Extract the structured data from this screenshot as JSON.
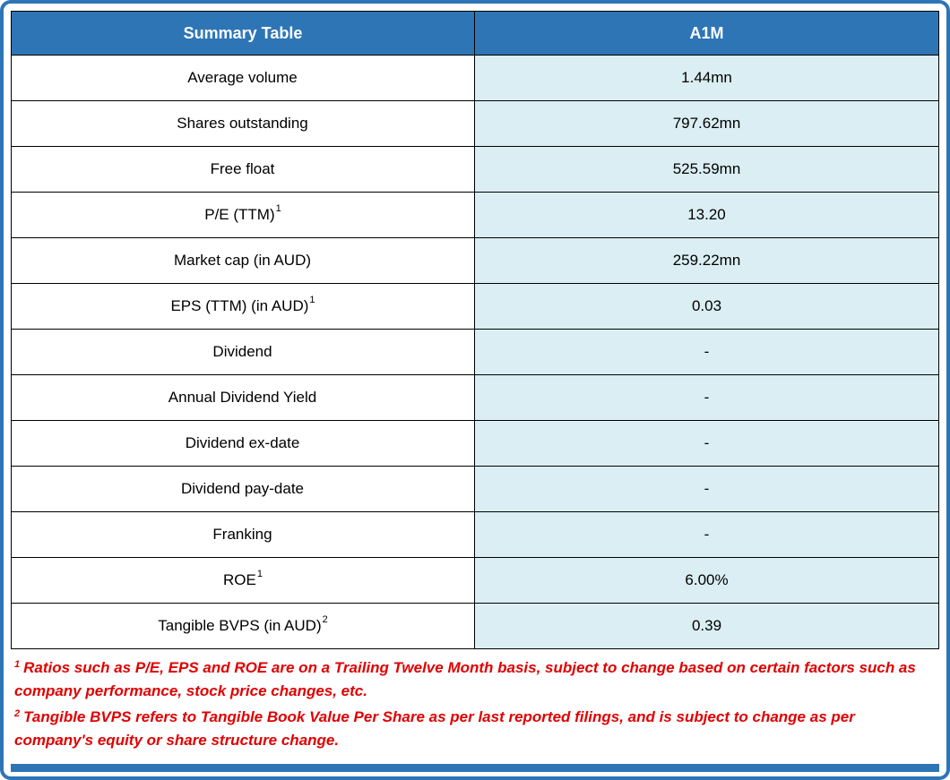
{
  "header": {
    "left": "Summary Table",
    "right": "A1M"
  },
  "table": {
    "rows": [
      {
        "label": "Average volume",
        "value": "1.44mn"
      },
      {
        "label": "Shares outstanding",
        "value": "797.62mn"
      },
      {
        "label": "Free float",
        "value": "525.59mn"
      },
      {
        "label": "P/E (TTM)",
        "sup": "1",
        "value": "13.20"
      },
      {
        "label": "Market cap (in AUD)",
        "value": "259.22mn"
      },
      {
        "label": "EPS (TTM) (in AUD)",
        "sup": "1",
        "value": "0.03"
      },
      {
        "label": "Dividend",
        "value": "-"
      },
      {
        "label": "Annual Dividend Yield",
        "value": "-"
      },
      {
        "label": "Dividend ex-date",
        "value": "-"
      },
      {
        "label": "Dividend pay-date",
        "value": "-"
      },
      {
        "label": "Franking",
        "value": "-"
      },
      {
        "label": "ROE",
        "sup": "1",
        "value": "6.00%"
      },
      {
        "label": "Tangible BVPS (in AUD)",
        "sup": "2",
        "value": "0.39"
      }
    ]
  },
  "footnotes": [
    {
      "sup": "1",
      "text": "Ratios such as P/E, EPS and ROE are on a Trailing Twelve Month basis, subject to change based on certain factors such as company performance, stock price changes, etc."
    },
    {
      "sup": "2",
      "text": "Tangible BVPS refers to Tangible Book Value Per Share as per last reported filings, and is subject to change as per company's equity or share structure change."
    }
  ],
  "colors": {
    "header_bg": "#2E75B6",
    "value_bg": "#DAEEF3",
    "footnote_color": "#E00000",
    "outer_border": "#2E75B6",
    "cell_border": "#000000"
  }
}
